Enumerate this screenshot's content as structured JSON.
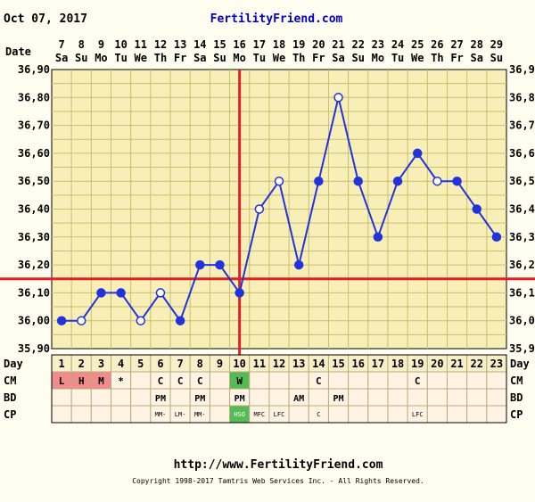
{
  "header": {
    "date": "Oct 07, 2017",
    "site": "FertilityFriend.com"
  },
  "footer": {
    "url": "http://www.FertilityFriend.com",
    "copyright": "Copyright 1998-2017 Tamtris Web Services Inc. - All Rights Reserved."
  },
  "colors": {
    "background": "#fffdf0",
    "plot_background": "#f8efb8",
    "grid": "#c9bf6a",
    "line": "#2233dd",
    "ovulation_line": "#dd2222",
    "coverline": "#dd2222",
    "cell_menses": "#f28b8b",
    "cell_fertile": "#55bb55",
    "cell_default": "#fff4e4",
    "site_text": "#0000cc"
  },
  "chart_data": {
    "type": "line",
    "title": "",
    "row_labels": {
      "date": "Date",
      "day": "Day",
      "cm": "CM",
      "bd": "BD",
      "cp": "CP"
    },
    "dates": [
      "7",
      "8",
      "9",
      "10",
      "11",
      "12",
      "13",
      "14",
      "15",
      "16",
      "17",
      "18",
      "19",
      "20",
      "21",
      "22",
      "23",
      "24",
      "25",
      "26",
      "27",
      "28",
      "29"
    ],
    "weekdays": [
      "Sa",
      "Su",
      "Mo",
      "Tu",
      "We",
      "Th",
      "Fr",
      "Sa",
      "Su",
      "Mo",
      "Tu",
      "We",
      "Th",
      "Fr",
      "Sa",
      "Su",
      "Mo",
      "Tu",
      "We",
      "Th",
      "Fr",
      "Sa",
      "Su"
    ],
    "cycle_days": [
      "1",
      "2",
      "3",
      "4",
      "5",
      "6",
      "7",
      "8",
      "9",
      "10",
      "11",
      "12",
      "13",
      "14",
      "15",
      "16",
      "17",
      "18",
      "19",
      "20",
      "21",
      "22",
      "23"
    ],
    "y_ticks": [
      "35,90",
      "36,00",
      "36,10",
      "36,20",
      "36,30",
      "36,40",
      "36,50",
      "36,60",
      "36,70",
      "36,80",
      "36,90"
    ],
    "right_y_ticks": [
      "35,9",
      "36,0",
      "36,1",
      "36,2",
      "36,3",
      "36,4",
      "36,5",
      "36,6",
      "36,7",
      "36,8",
      "36,9"
    ],
    "ylim": [
      35.9,
      36.9
    ],
    "temperatures": [
      36.0,
      36.0,
      36.1,
      36.1,
      36.0,
      36.1,
      36.0,
      36.2,
      36.2,
      36.1,
      36.4,
      36.5,
      36.2,
      36.5,
      36.8,
      36.5,
      36.3,
      36.5,
      36.6,
      36.5,
      36.5,
      36.4,
      36.3
    ],
    "open_markers": [
      false,
      true,
      false,
      false,
      true,
      true,
      false,
      false,
      false,
      false,
      true,
      true,
      false,
      false,
      true,
      false,
      false,
      false,
      false,
      true,
      false,
      false,
      false
    ],
    "coverline": 36.15,
    "ovulation_day": 10,
    "cm": [
      "L",
      "H",
      "M",
      "*",
      "",
      "C",
      "C",
      "C",
      "",
      "W",
      "",
      "",
      "",
      "C",
      "",
      "",
      "",
      "",
      "C",
      "",
      "",
      "",
      ""
    ],
    "cm_fill": [
      "menses",
      "menses",
      "menses",
      "",
      "",
      "",
      "",
      "",
      "",
      "fertile",
      "",
      "",
      "",
      "",
      "",
      "",
      "",
      "",
      "",
      "",
      "",
      "",
      ""
    ],
    "bd": [
      "",
      "",
      "",
      "",
      "",
      "PM",
      "",
      "PM",
      "",
      "PM",
      "",
      "",
      "AM",
      "",
      "PM",
      "",
      "",
      "",
      "",
      "",
      "",
      "",
      ""
    ],
    "cp": [
      "",
      "",
      "",
      "",
      "",
      "MM-",
      "LM-",
      "MM-",
      "",
      "HSO",
      "MFC",
      "LFC",
      "",
      "C",
      "",
      "",
      "",
      "",
      "LFC",
      "",
      "",
      "",
      ""
    ],
    "cp_fill": [
      "",
      "",
      "",
      "",
      "",
      "",
      "",
      "",
      "",
      "fertile",
      "",
      "",
      "",
      "",
      "",
      "",
      "",
      "",
      "",
      "",
      "",
      "",
      ""
    ]
  }
}
